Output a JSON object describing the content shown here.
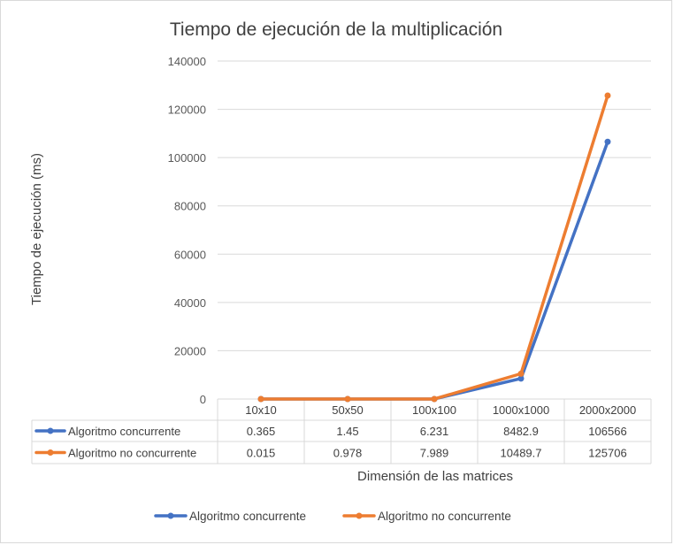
{
  "chart_data": {
    "type": "line",
    "title": "Tiempo de ejecución de la multiplicación",
    "xlabel": "Dimensión de las matrices",
    "ylabel": "Tiempo de ejecución (ms)",
    "categories": [
      "10x10",
      "50x50",
      "100x100",
      "1000x1000",
      "2000x2000"
    ],
    "ylim": [
      0,
      140000
    ],
    "yticks": [
      0,
      20000,
      40000,
      60000,
      80000,
      100000,
      120000,
      140000
    ],
    "ytick_labels": [
      "0",
      "20000",
      "40000",
      "60000",
      "80000",
      "100000",
      "120000",
      "140000"
    ],
    "grid": true,
    "legend_position": "bottom",
    "data_table": true,
    "series": [
      {
        "name": "Algoritmo concurrente",
        "color": "#4472c4",
        "values": [
          0.365,
          1.45,
          6.231,
          8482.9,
          106566
        ],
        "value_labels": [
          "0.365",
          "1.45",
          "6.231",
          "8482.9",
          "106566"
        ]
      },
      {
        "name": "Algoritmo no concurrente",
        "color": "#ed7d31",
        "values": [
          0.015,
          0.978,
          7.989,
          10489.7,
          125706
        ],
        "value_labels": [
          "0.015",
          "0.978",
          "7.989",
          "10489.7",
          "125706"
        ]
      }
    ]
  }
}
